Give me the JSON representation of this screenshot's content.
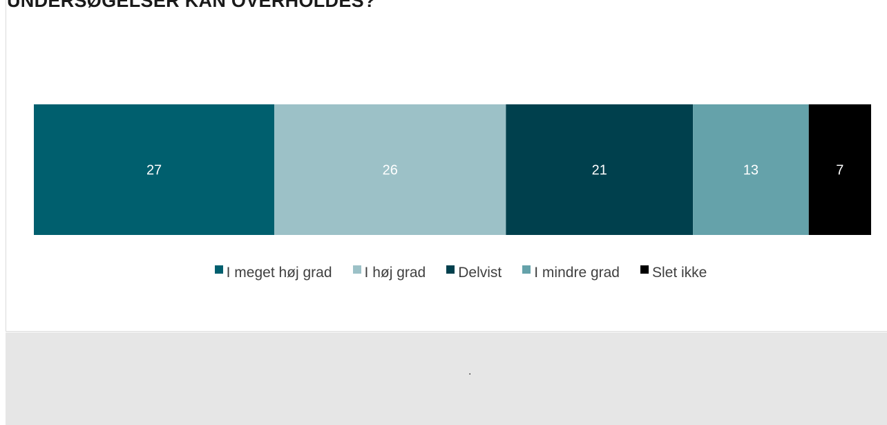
{
  "title": "UNDERSØGELSER KAN OVERHOLDES?",
  "chart_data": {
    "type": "bar",
    "orientation": "horizontal-stacked",
    "categories": [
      ""
    ],
    "series": [
      {
        "name": "I meget høj grad",
        "values": [
          27
        ],
        "color": "#005f6e"
      },
      {
        "name": "I høj grad",
        "values": [
          26
        ],
        "color": "#9cc1c7"
      },
      {
        "name": "Delvist",
        "values": [
          21
        ],
        "color": "#00404d"
      },
      {
        "name": "I mindre grad",
        "values": [
          13
        ],
        "color": "#65a2aa"
      },
      {
        "name": "Slet ikke",
        "values": [
          7
        ],
        "color": "#000000"
      }
    ],
    "xlabel": "",
    "ylabel": "",
    "grid": false,
    "legend": "bottom"
  },
  "footer": {
    "note": "."
  }
}
